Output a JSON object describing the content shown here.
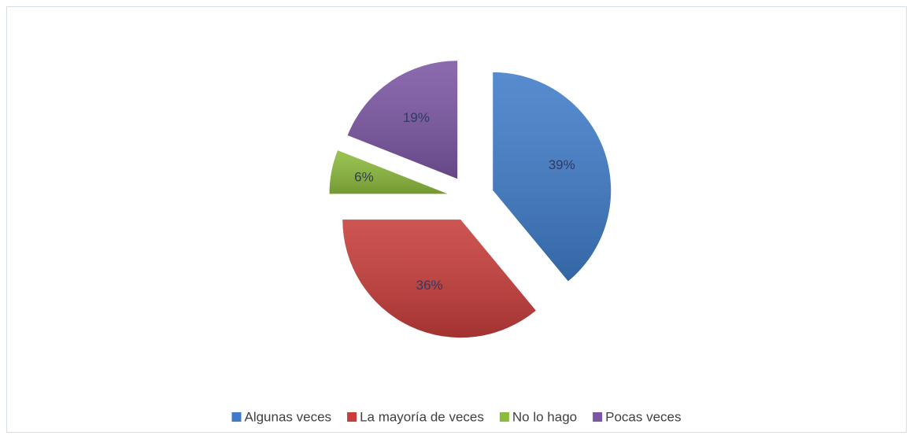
{
  "chart_data": {
    "type": "pie",
    "categories": [
      "Algunas veces",
      "La mayoría de veces",
      "No lo hago",
      "Pocas veces"
    ],
    "values": [
      39,
      36,
      6,
      19
    ],
    "value_labels": [
      "39%",
      "36%",
      "6%",
      "19%"
    ],
    "colors": [
      "#3f7cc8",
      "#c63d3a",
      "#8cba3c",
      "#7b56a3"
    ],
    "legend": "bottom"
  }
}
